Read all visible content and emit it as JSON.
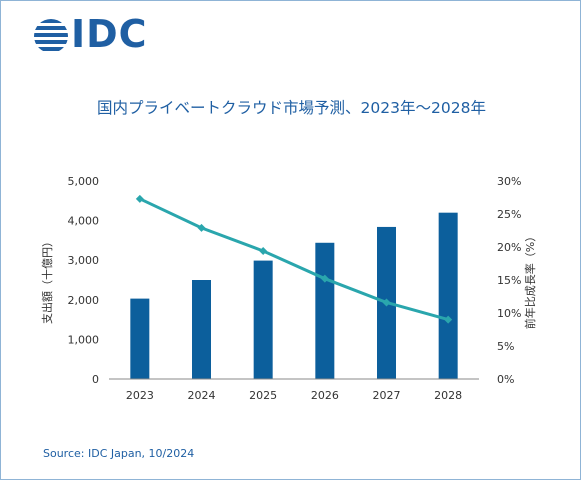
{
  "logo": {
    "text": "IDC"
  },
  "title": "国内プライベートクラウド市場予測、2023年～2028年",
  "source": "Source: IDC Japan, 10/2024",
  "colors": {
    "bar": "#0c5f9c",
    "line": "#2aa6ad",
    "brand": "#1f5fa3",
    "axis": "#888888"
  },
  "chart_data": {
    "type": "bar",
    "categories": [
      "2023",
      "2024",
      "2025",
      "2026",
      "2027",
      "2028"
    ],
    "series": [
      {
        "type": "bar",
        "axis": "left",
        "values": [
          2030,
          2500,
          2990,
          3440,
          3840,
          4200
        ]
      },
      {
        "type": "line",
        "axis": "right",
        "values": [
          27.3,
          22.9,
          19.4,
          15.2,
          11.6,
          9.0
        ]
      }
    ],
    "ylabel": "支出額（十億円）",
    "y2label": "前年比成長率（%）",
    "ylim": [
      0,
      5000
    ],
    "y2lim": [
      0,
      30
    ],
    "yticks": [
      "0",
      "1,000",
      "2,000",
      "3,000",
      "4,000",
      "5,000"
    ],
    "y2ticks": [
      "0%",
      "5%",
      "10%",
      "15%",
      "20%",
      "25%",
      "30%"
    ],
    "grid": false,
    "legend": "none"
  }
}
